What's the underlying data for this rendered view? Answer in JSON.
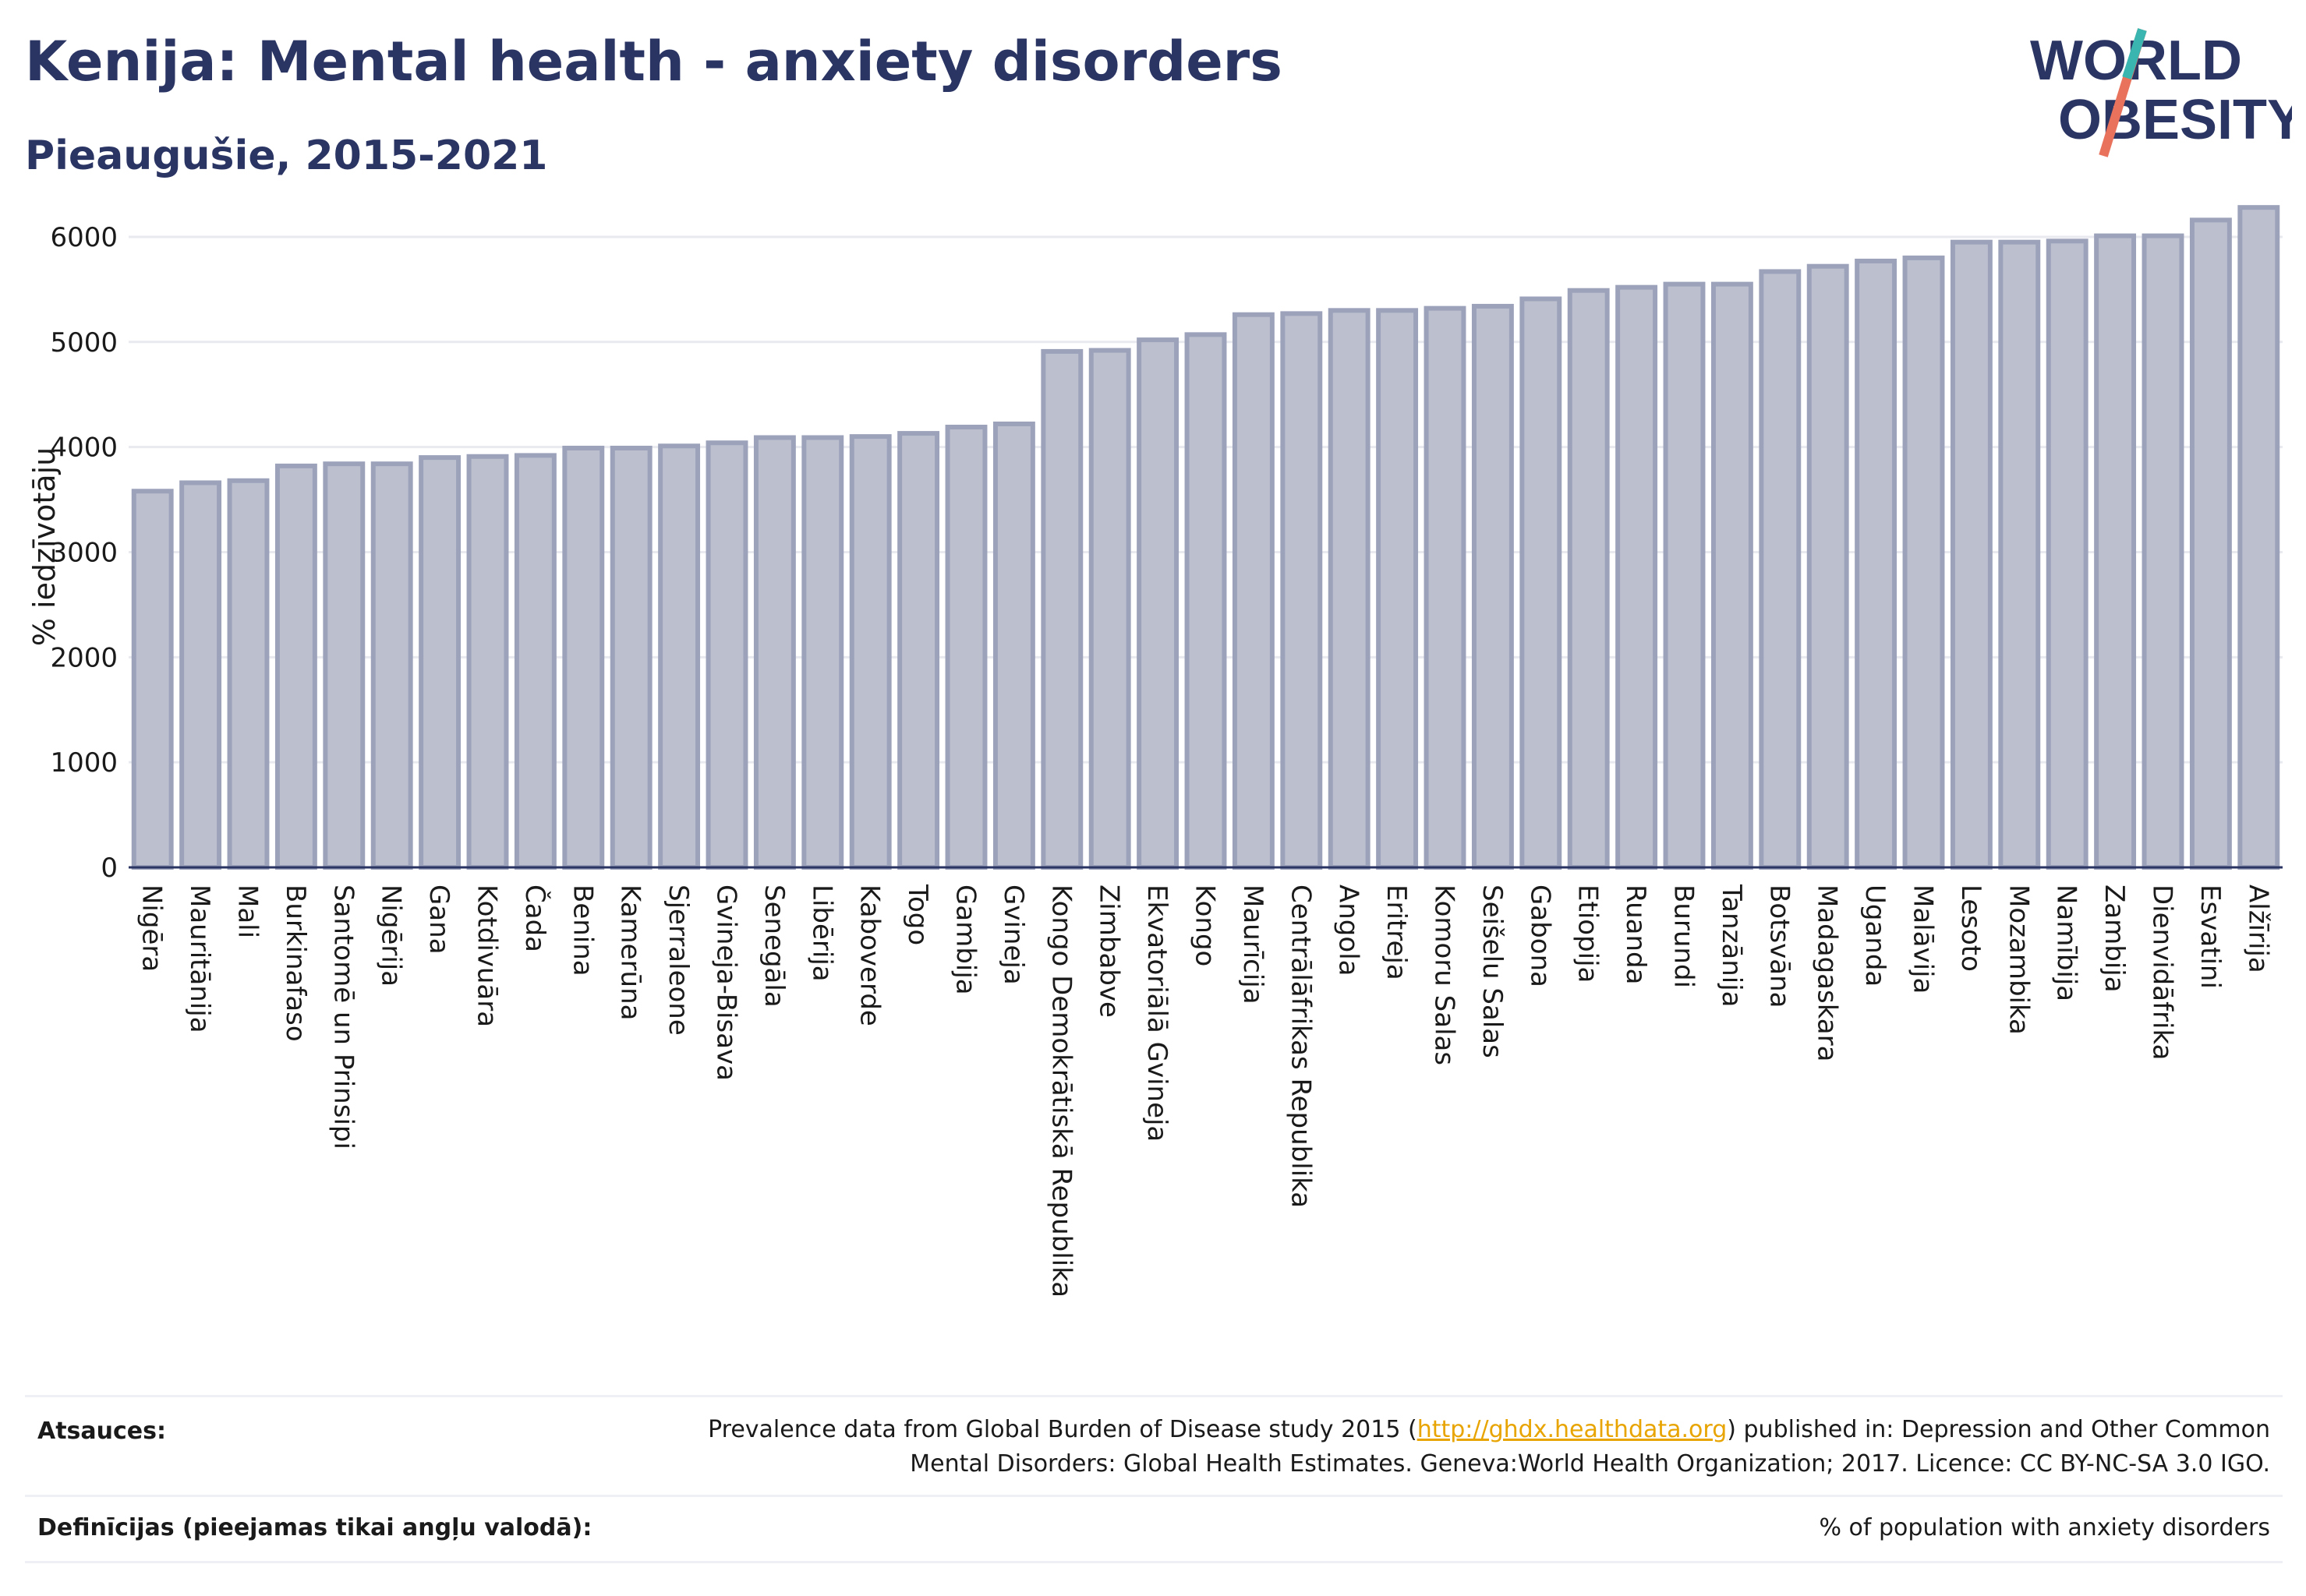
{
  "header": {
    "title": "Kenija: Mental health - anxiety disorders",
    "subtitle": "Pieaugušie, 2015-2021"
  },
  "logo": {
    "line1": "WORLD",
    "line2": "OBESITY"
  },
  "colors": {
    "bar_fill": "#bcc0ce",
    "bar_stroke": "#9ca2ba",
    "text": "#2b3564",
    "grid": "#e8eaf0"
  },
  "chart_data": {
    "type": "bar",
    "ylabel": "% iedzīvotāju",
    "xlabel": "",
    "ylim": [
      0,
      6400
    ],
    "yticks": [
      0,
      1000,
      2000,
      3000,
      4000,
      5000,
      6000
    ],
    "grid": true,
    "categories": [
      "Nigēra",
      "Mauritānija",
      "Mali",
      "Burkinafaso",
      "Santomē un Prinsipi",
      "Nigērija",
      "Gana",
      "Kotdivuāra",
      "Čada",
      "Benina",
      "Kamerūna",
      "Sjerraleone",
      "Gvineja-Bisava",
      "Senegāla",
      "Libērija",
      "Kaboverde",
      "Togo",
      "Gambija",
      "Gvineja",
      "Kongo Demokrātiskā Republika",
      "Zimbabve",
      "Ekvatoriālā Gvineja",
      "Kongo",
      "Maurīcija",
      "Centrālāfrikas Republika",
      "Angola",
      "Eritreja",
      "Komoru Salas",
      "Seišelu Salas",
      "Gabona",
      "Etiopija",
      "Ruanda",
      "Burundi",
      "Tanzānija",
      "Botsvāna",
      "Madagaskara",
      "Uganda",
      "Malāvija",
      "Lesoto",
      "Mozambika",
      "Namībija",
      "Zambija",
      "Dienvidāfrika",
      "Esvatini",
      "Alžīrija"
    ],
    "values": [
      3580,
      3660,
      3680,
      3820,
      3840,
      3840,
      3900,
      3910,
      3920,
      3990,
      3990,
      4010,
      4040,
      4090,
      4090,
      4100,
      4130,
      4190,
      4220,
      4910,
      4920,
      5020,
      5070,
      5260,
      5270,
      5300,
      5300,
      5320,
      5340,
      5410,
      5490,
      5520,
      5550,
      5550,
      5670,
      5720,
      5770,
      5800,
      5950,
      5950,
      5960,
      6010,
      6010,
      6160,
      6280
    ]
  },
  "footer": {
    "sources_label": "Atsauces:",
    "sources_text_1a": "Prevalence data from Global Burden of Disease study 2015 (",
    "sources_link": "http://ghdx.healthdata.org",
    "sources_text_1b": ") published in: Depression and Other Common",
    "sources_text_2": "Mental Disorders: Global Health Estimates. Geneva:World Health Organization; 2017. Licence: CC BY-NC-SA 3.0 IGO.",
    "definitions_label": "Definīcijas (pieejamas tikai angļu valodā):",
    "definitions_text": "% of population with anxiety disorders"
  }
}
